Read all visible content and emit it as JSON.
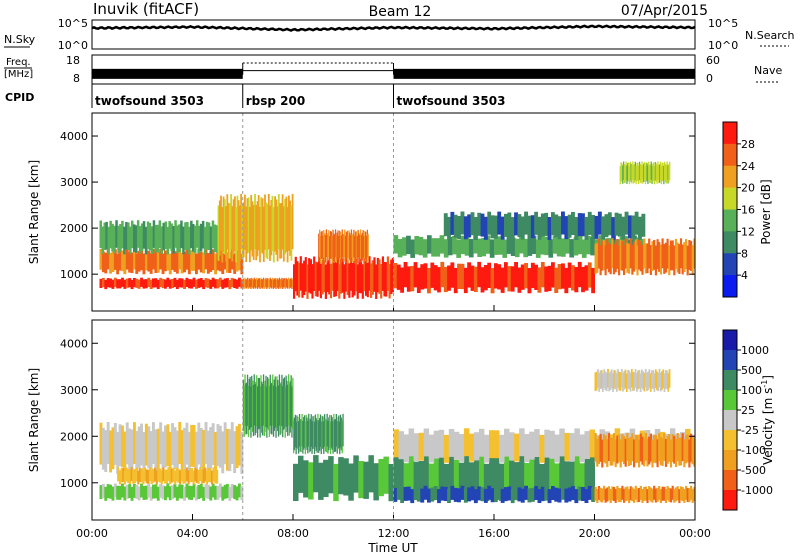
{
  "header": {
    "title": "Inuvik (fitACF)",
    "beam": "Beam 12",
    "date": "07/Apr/2015"
  },
  "colors": {
    "power_scale": [
      "#0a1cf0",
      "#2244b4",
      "#3e8a62",
      "#58b058",
      "#c8d828",
      "#f0a020",
      "#f06018",
      "#ff1a10"
    ],
    "velocity_scale": [
      "#ff1a10",
      "#f06018",
      "#f0a020",
      "#f4c030",
      "#c8c8c8",
      "#58c838",
      "#3e8a62",
      "#2244b4",
      "#1a1aa8"
    ]
  },
  "chart_data": [
    {
      "type": "line",
      "name": "sky-noise-panel",
      "left_label": "N.Sky",
      "right_label": "N.Search",
      "left_ticks": [
        "10^5",
        "10^0"
      ],
      "right_ticks": [
        "10^5",
        "10^0"
      ],
      "ylim": [
        0,
        5
      ],
      "scale": "log",
      "x": [
        0,
        4,
        8,
        12,
        16,
        20,
        24
      ],
      "series": [
        {
          "values": [
            3.6,
            3.8,
            3.3,
            3.7,
            3.5,
            3.9,
            3.7
          ]
        }
      ]
    },
    {
      "type": "line",
      "name": "frequency-panel",
      "left_label_lines": [
        "Freq.",
        "[MHz]"
      ],
      "left_ticks": [
        "18",
        "8"
      ],
      "right_label": "Nave",
      "right_ticks": [
        "60",
        "0"
      ],
      "ylim": [
        8,
        18
      ],
      "x_segments": [
        [
          0,
          6
        ],
        [
          6,
          12
        ],
        [
          12,
          24
        ]
      ],
      "series": [
        {
          "values": [
            11.5,
            12.6,
            11.5
          ]
        }
      ]
    },
    {
      "type": "table",
      "name": "cpid-panel",
      "label": "CPID",
      "segments": [
        {
          "start": 0,
          "end": 6,
          "name": "twofsound 3503"
        },
        {
          "start": 6,
          "end": 12,
          "name": "rbsp 200"
        },
        {
          "start": 12,
          "end": 24,
          "name": "twofsound 3503"
        }
      ]
    },
    {
      "type": "heatmap",
      "name": "power-panel",
      "ylabel": "Slant Range [km]",
      "xlim": [
        0,
        24
      ],
      "ylim": [
        200,
        4500
      ],
      "yticks": [
        "4000",
        "3000",
        "2000",
        "1000"
      ],
      "colorbar_label": "Power [dB]",
      "colorbar_ticks": [
        "28",
        "24",
        "20",
        "16",
        "12",
        "8",
        "4"
      ],
      "bands": [
        {
          "x0": 0.3,
          "x1": 6,
          "y0": 700,
          "y1": 900,
          "level": 7
        },
        {
          "x0": 0.3,
          "x1": 6,
          "y0": 1050,
          "y1": 1500,
          "level": 6
        },
        {
          "x0": 0.3,
          "x1": 5,
          "y0": 1500,
          "y1": 2100,
          "level": 3
        },
        {
          "x0": 6,
          "x1": 8,
          "y0": 700,
          "y1": 900,
          "level": 6
        },
        {
          "x0": 5,
          "x1": 8,
          "y0": 1400,
          "y1": 2600,
          "level": 5
        },
        {
          "x0": 8,
          "x1": 12,
          "y0": 550,
          "y1": 1300,
          "level": 7
        },
        {
          "x0": 9,
          "x1": 11,
          "y0": 1300,
          "y1": 1900,
          "level": 6
        },
        {
          "x0": 12,
          "x1": 20,
          "y0": 650,
          "y1": 1200,
          "level": 7
        },
        {
          "x0": 12,
          "x1": 22,
          "y0": 1400,
          "y1": 1800,
          "level": 3
        },
        {
          "x0": 14,
          "x1": 22,
          "y0": 1800,
          "y1": 2300,
          "level": 2
        },
        {
          "x0": 20,
          "x1": 24,
          "y0": 1050,
          "y1": 1700,
          "level": 6
        },
        {
          "x0": 21,
          "x1": 23,
          "y0": 3000,
          "y1": 3400,
          "level": 4
        }
      ]
    },
    {
      "type": "heatmap",
      "name": "velocity-panel",
      "ylabel": "Slant Range [km]",
      "xlabel": "Time UT",
      "xlim": [
        0,
        24
      ],
      "ylim": [
        200,
        4500
      ],
      "xticks": [
        "00:00",
        "04:00",
        "08:00",
        "12:00",
        "16:00",
        "20:00",
        "00:00"
      ],
      "yticks": [
        "4000",
        "3000",
        "2000",
        "1000"
      ],
      "colorbar_label": "Velocity [m s",
      "colorbar_label_superscript": "-1",
      "colorbar_ticks": [
        "1000",
        "500",
        "100",
        "25",
        "-25",
        "-100",
        "-500",
        "-1000"
      ],
      "bands": [
        {
          "x0": 0.3,
          "x1": 6,
          "y0": 650,
          "y1": 950,
          "level": 5
        },
        {
          "x0": 0.3,
          "x1": 6,
          "y0": 1300,
          "y1": 2200,
          "level": 4
        },
        {
          "x0": 1,
          "x1": 5,
          "y0": 1000,
          "y1": 1300,
          "level": 3
        },
        {
          "x0": 6,
          "x1": 8,
          "y0": 2100,
          "y1": 3200,
          "level": 6
        },
        {
          "x0": 8,
          "x1": 10,
          "y0": 1700,
          "y1": 2400,
          "level": 6
        },
        {
          "x0": 8,
          "x1": 20,
          "y0": 700,
          "y1": 1500,
          "level": 6
        },
        {
          "x0": 12,
          "x1": 20,
          "y0": 600,
          "y1": 900,
          "level": 7
        },
        {
          "x0": 12,
          "x1": 24,
          "y0": 1500,
          "y1": 2100,
          "level": 4
        },
        {
          "x0": 20,
          "x1": 24,
          "y0": 1400,
          "y1": 2000,
          "level": 2
        },
        {
          "x0": 20,
          "x1": 24,
          "y0": 600,
          "y1": 900,
          "level": 2
        },
        {
          "x0": 20,
          "x1": 23,
          "y0": 3000,
          "y1": 3400,
          "level": 4
        }
      ]
    }
  ]
}
